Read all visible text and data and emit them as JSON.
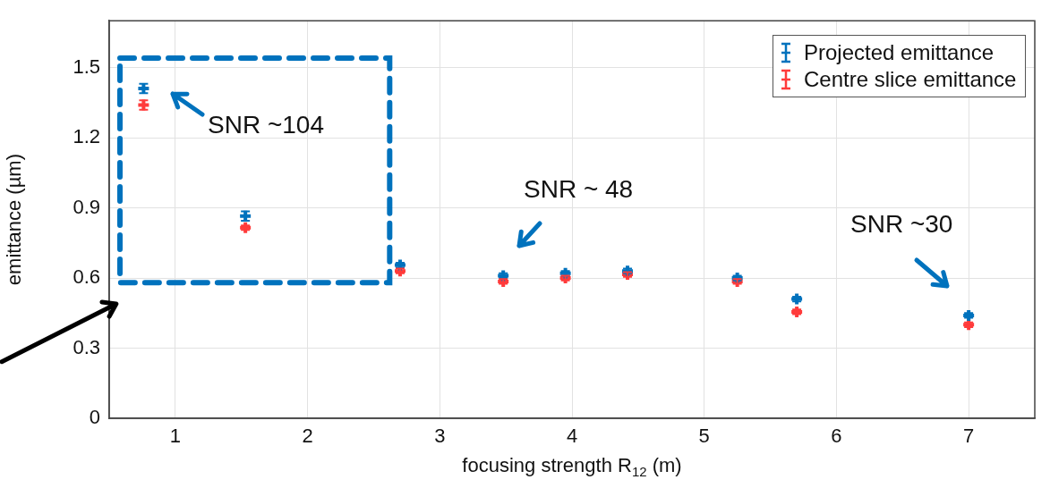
{
  "chart_data": {
    "type": "scatter",
    "xlabel": "focusing strength R$_{12}$ (m)",
    "ylabel": "emittance (µm)",
    "x": [
      0.76,
      1.53,
      2.7,
      3.48,
      3.95,
      4.42,
      5.25,
      5.7,
      7.0
    ],
    "series": [
      {
        "name": "Projected emittance",
        "color": "#0072bd",
        "values": [
          1.41,
          0.865,
          0.655,
          0.61,
          0.62,
          0.63,
          0.6,
          0.51,
          0.44
        ],
        "errors": [
          0.02,
          0.02,
          0.01,
          0.01,
          0.01,
          0.01,
          0.01,
          0.01,
          0.01
        ]
      },
      {
        "name": "Centre slice emittance",
        "color": "#ff3b3b",
        "values": [
          1.34,
          0.815,
          0.63,
          0.585,
          0.6,
          0.615,
          0.585,
          0.455,
          0.4
        ],
        "errors": [
          0.02,
          0.01,
          0.01,
          0.01,
          0.01,
          0.01,
          0.01,
          0.01,
          0.01
        ]
      }
    ],
    "xlim": [
      0.5,
      7.5
    ],
    "xticks": [
      1,
      2,
      3,
      4,
      5,
      6,
      7
    ],
    "ylim": [
      0,
      1.7
    ],
    "yticks": [
      0,
      0.3,
      0.6,
      0.9,
      1.2,
      1.5
    ],
    "grid": true,
    "legend": "top right",
    "marker": "cross",
    "annotations": [
      "SNR ~104",
      "SNR ~ 48",
      "SNR ~30"
    ]
  }
}
